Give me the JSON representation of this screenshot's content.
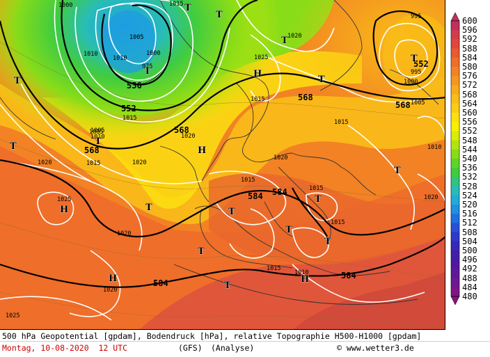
{
  "footer": {
    "title": "500 hPa Geopotential [gpdam], Bodendruck [hPa], relative Topographie H500-H1000 [gpdam]",
    "date": "Montag, 10-08-2020  12 UTC",
    "model": "(GFS)",
    "analysis": "(Analyse)",
    "copyright": "© www.wetter3.de"
  },
  "legend": {
    "levels": [
      "600",
      "596",
      "592",
      "588",
      "584",
      "580",
      "576",
      "572",
      "568",
      "564",
      "560",
      "556",
      "552",
      "548",
      "544",
      "540",
      "536",
      "532",
      "528",
      "524",
      "520",
      "516",
      "512",
      "508",
      "504",
      "500",
      "496",
      "492",
      "488",
      "484",
      "480"
    ],
    "colors": [
      "#c0305c",
      "#d23c48",
      "#e0463c",
      "#e85a30",
      "#ef6e2a",
      "#f28224",
      "#f59620",
      "#f7aa1c",
      "#f9bc18",
      "#fbcc14",
      "#fde010",
      "#f8f000",
      "#d8ec08",
      "#b0e410",
      "#88dc18",
      "#60d428",
      "#40cc40",
      "#30c480",
      "#28bcb8",
      "#20acd8",
      "#2090e0",
      "#2070e0",
      "#2850d8",
      "#3038c8",
      "#3828b8",
      "#4020a8",
      "#5018a0",
      "#601898",
      "#701890",
      "#801488",
      "#901080"
    ]
  },
  "map": {
    "geopotential_labels": [
      "536",
      "552",
      "568",
      "568",
      "568",
      "584",
      "584",
      "584",
      "584",
      "568",
      "552"
    ],
    "pressure_labels": [
      "1000",
      "1005",
      "1010",
      "1015",
      "1020",
      "1025",
      "1010",
      "1015",
      "1020",
      "1025",
      "1005",
      "1010",
      "1015",
      "1020",
      "1020",
      "1020",
      "1025",
      "1015",
      "1015",
      "1015",
      "1015",
      "1010",
      "1020",
      "995",
      "995",
      "1000",
      "1005",
      "1015",
      "1020",
      "1020",
      "1010",
      "1015",
      "1000",
      "975",
      "1005"
    ],
    "pressure_centers": [
      "T",
      "T",
      "T",
      "T",
      "H",
      "T",
      "T",
      "T",
      "T",
      "H",
      "H",
      "T",
      "T",
      "T",
      "T",
      "T",
      "T",
      "H",
      "H",
      "T",
      "T",
      "T"
    ]
  }
}
